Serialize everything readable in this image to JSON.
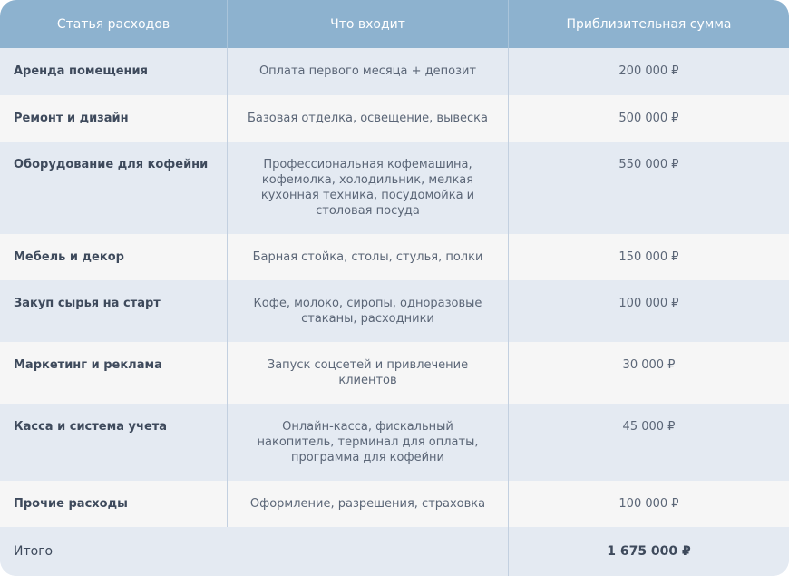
{
  "headers": [
    "Статья расходов",
    "Что входит",
    "Приблизительная сумма"
  ],
  "rows": [
    {
      "item": "Аренда помещения",
      "includes": "Оплата первого месяца + депозит",
      "amount": "200 000 ₽"
    },
    {
      "item": "Ремонт и дизайн",
      "includes": "Базовая отделка, освещение, вывеска",
      "amount": "500 000 ₽"
    },
    {
      "item": "Оборудование для кофейни",
      "includes": "Профессиональная кофемашина, кофемолка, холодильник, мелкая кухонная техника, посудомойка и столовая посуда",
      "amount": "550 000 ₽"
    },
    {
      "item": "Мебель и декор",
      "includes": "Барная стойка, столы, стулья, полки",
      "amount": "150 000 ₽"
    },
    {
      "item": "Закуп сырья на старт",
      "includes": "Кофе, молоко, сиропы, одноразовые стаканы, расходники",
      "amount": "100 000 ₽"
    },
    {
      "item": "Маркетинг и реклама",
      "includes": "Запуск соцсетей и привлечение клиентов",
      "amount": "30 000 ₽"
    },
    {
      "item": "Касса и система учета",
      "includes": "Онлайн-касса, фискальный накопитель, терминал для оплаты, программа для кофейни",
      "amount": "45 000 ₽"
    },
    {
      "item": "Прочие расходы",
      "includes": "Оформление, разрешения, страховка",
      "amount": "100 000 ₽"
    }
  ],
  "total": {
    "label": "Итого",
    "amount": "1 675 000 ₽"
  },
  "colors": {
    "header": "#8db2cf",
    "row_odd": "#e4eaf2",
    "row_even": "#f6f6f6"
  }
}
